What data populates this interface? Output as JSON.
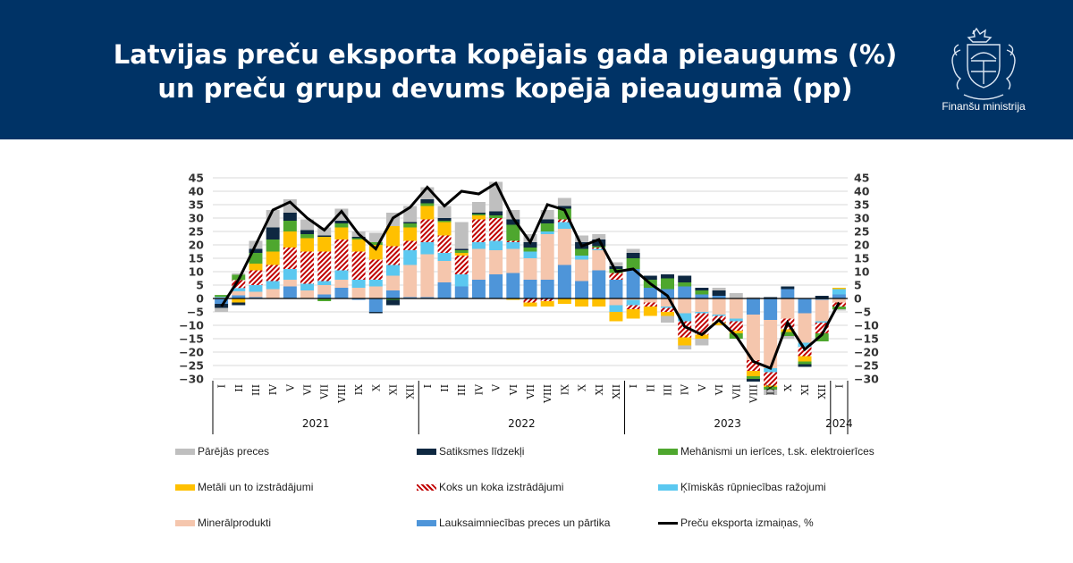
{
  "header": {
    "title_line1": "Latvijas preču eksporta kopējais gada pieaugums (%)",
    "title_line2": "un preču grupu devums kopējā pieaugumā (pp)",
    "logo_label": "Finanšu ministrija",
    "logo_icon": "coat-of-arms-icon",
    "background_color": "#003366"
  },
  "chart_data": {
    "type": "bar",
    "subtype": "stacked-bar-with-line",
    "title": "Latvijas preču eksporta kopējais gada pieaugums (%) un preču grupu devums kopējā pieaugumā (pp)",
    "xlabel": "",
    "ylabel": "",
    "ylim": [
      -30,
      45
    ],
    "yticks": [
      45,
      40,
      35,
      30,
      25,
      20,
      15,
      10,
      5,
      0,
      -5,
      -10,
      -15,
      -20,
      -25,
      -30
    ],
    "grid": true,
    "secondary_axis": true,
    "legend_position": "bottom",
    "categories": [
      "I",
      "II",
      "III",
      "IV",
      "V",
      "VI",
      "VII",
      "VIII",
      "IX",
      "X",
      "XI",
      "XII",
      "I",
      "II",
      "III",
      "IV",
      "V",
      "VI",
      "VII",
      "VIII",
      "IX",
      "X",
      "XI",
      "XII",
      "I",
      "II",
      "III",
      "IV",
      "V",
      "VI",
      "VII",
      "VIII",
      "IX",
      "X",
      "XI",
      "XII",
      "I"
    ],
    "year_groups": [
      {
        "label": "2021",
        "count": 12
      },
      {
        "label": "2022",
        "count": 12
      },
      {
        "label": "2023",
        "count": 12
      },
      {
        "label": "2024",
        "count": 1
      }
    ],
    "series": [
      {
        "name": "Lauksaimniecības preces un pārtika",
        "color": "#4e95d9",
        "pattern": "solid",
        "values": [
          -2,
          1.2,
          0.5,
          0,
          4.5,
          0,
          1.5,
          4,
          -0.5,
          -5,
          3,
          0.5,
          0.5,
          6,
          4.5,
          7,
          9,
          9.5,
          7,
          7,
          12.5,
          6.5,
          10.5,
          7,
          11,
          4,
          3.5,
          4.5,
          1.5,
          1,
          0,
          -6,
          -8,
          3.5,
          -5.5,
          -0.5,
          1.5
        ]
      },
      {
        "name": "Minerālprodukti",
        "color": "#f5c6ad",
        "pattern": "solid",
        "values": [
          0.3,
          1.5,
          2,
          3.5,
          2.5,
          3,
          3.5,
          3,
          4,
          4.5,
          5.5,
          12,
          16,
          8,
          0,
          11.5,
          9,
          9,
          8,
          17,
          13.5,
          8,
          7.5,
          -2.5,
          -0.5,
          -1.5,
          -3,
          -5.5,
          -5,
          -6,
          -7.5,
          -17,
          -18,
          -7.5,
          -11,
          -8,
          -1.5
        ]
      },
      {
        "name": "Ķīmiskās rūpniecības ražojumi",
        "color": "#5bc8f0",
        "pattern": "solid",
        "values": [
          0.3,
          1.2,
          2.5,
          3,
          4,
          2.5,
          1.5,
          3.5,
          3,
          2.5,
          4,
          5.5,
          4.5,
          3,
          4.5,
          2.5,
          3.5,
          2.5,
          2.5,
          1,
          2.5,
          1.5,
          0.5,
          -2.5,
          -2,
          0,
          -0.5,
          -3,
          -0.5,
          -0.5,
          -1,
          0,
          -1.5,
          0,
          -1.5,
          -0.5,
          2
        ]
      },
      {
        "name": "Koks un koka izstrādājumi",
        "color": "#c00000",
        "pattern": "hatched",
        "values": [
          0,
          3,
          5.5,
          6,
          8,
          12,
          11,
          11.5,
          10.5,
          7.5,
          7,
          3.5,
          8.5,
          6.5,
          7,
          8.5,
          8.5,
          0.5,
          -1.5,
          -1,
          1,
          0,
          0.5,
          2.5,
          -1.5,
          -1.5,
          -1.5,
          -6,
          -8,
          -2.5,
          -3.5,
          -4,
          -5,
          -4,
          -3.5,
          -4,
          -1.5
        ]
      },
      {
        "name": "Metāli un to izstrādājumi",
        "color": "#ffc000",
        "pattern": "solid",
        "values": [
          0,
          -1.5,
          2.5,
          5,
          6,
          5,
          5.5,
          4.5,
          4.5,
          5.5,
          7.5,
          5,
          5,
          5,
          1,
          1.5,
          0,
          -0.5,
          -1.5,
          -2,
          -2,
          -3,
          -3,
          -3.5,
          -3.5,
          -3.5,
          -1.5,
          -3,
          -1.5,
          -1,
          -1,
          -2,
          -0.5,
          -1,
          -2,
          0,
          0.5
        ]
      },
      {
        "name": "Mehānismi un ierīces, t.sk. elektroierīces",
        "color": "#4ea72e",
        "pattern": "solid",
        "values": [
          0.7,
          2,
          4,
          4.5,
          4,
          1.5,
          -1,
          1.5,
          0.5,
          1,
          -0.5,
          1.5,
          1,
          0.5,
          1,
          0.5,
          1,
          6,
          1.5,
          3,
          4,
          2.5,
          0.5,
          1.5,
          4,
          3,
          4,
          1.5,
          1.5,
          0,
          -2,
          -1,
          -1,
          -1.5,
          -1,
          -3,
          -1
        ]
      },
      {
        "name": "Satiksmes līdzekļi",
        "color": "#0e2841",
        "pattern": "solid",
        "values": [
          -1.5,
          -1,
          1.5,
          4.5,
          3,
          1.5,
          0.5,
          1,
          0.5,
          -0.5,
          -2,
          0.5,
          1.5,
          1,
          0.5,
          0.5,
          1.5,
          2,
          2,
          1.5,
          1,
          2.5,
          2.5,
          1,
          2,
          1.5,
          1.5,
          2.5,
          1,
          2,
          0,
          -1,
          0.5,
          1,
          -1,
          1,
          0
        ]
      },
      {
        "name": "Pārējās preces",
        "color": "#bfbfbf",
        "pattern": "solid",
        "values": [
          -1.5,
          0.5,
          3,
          6.5,
          5,
          4,
          3,
          4.5,
          2,
          3.5,
          5,
          6,
          4.5,
          4.5,
          10,
          4,
          11,
          3.5,
          3,
          3.5,
          3,
          2.5,
          2,
          1.5,
          1.5,
          0,
          -2.5,
          -1.5,
          -2.5,
          1,
          2,
          0.5,
          -2,
          -1,
          0,
          0,
          -0.5
        ]
      },
      {
        "name": "Preču eksporta izmaiņas, %",
        "color": "#000000",
        "type": "line",
        "values": [
          -3,
          7,
          20,
          33,
          36,
          30,
          25.5,
          32.5,
          24,
          18.5,
          30,
          34,
          41.5,
          34.5,
          40,
          39,
          43,
          30,
          21,
          35,
          33,
          19.5,
          22,
          10,
          11,
          5.5,
          1,
          -10.5,
          -13.5,
          -8,
          -14,
          -23.5,
          -26,
          -9,
          -19,
          -13.5,
          -1.5
        ]
      }
    ]
  }
}
